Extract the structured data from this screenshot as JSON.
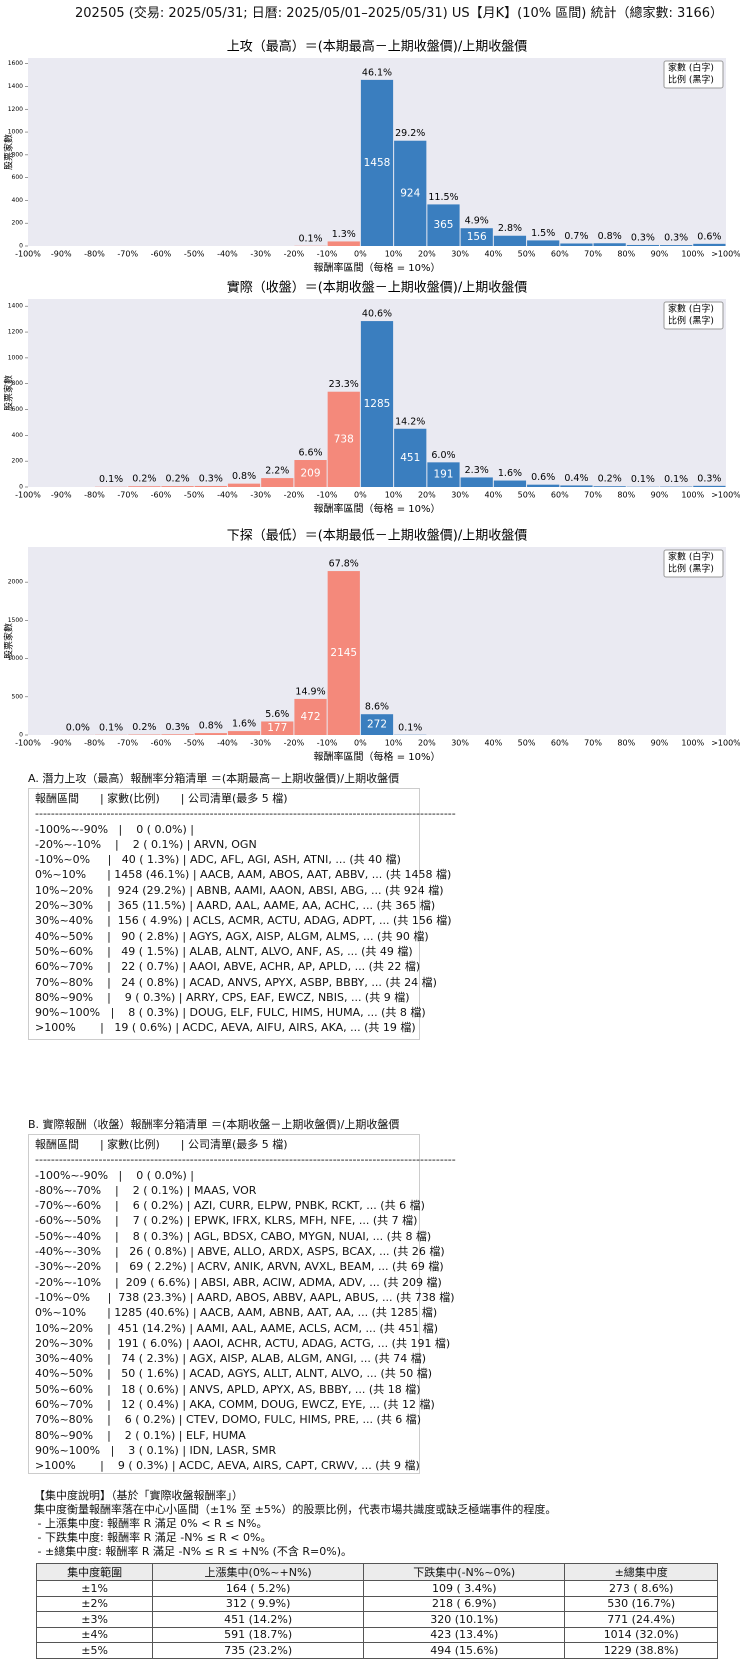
{
  "header": {
    "title": "202505 (交易: 2025/05/31; 日曆: 2025/05/01–2025/05/31) US【月K】(10% 區間) 統計（總家數: 3166）"
  },
  "chart_data": [
    {
      "type": "bar",
      "title": "上攻（最高）＝(本期最高－上期收盤價)/上期收盤價",
      "x_label": "報酬率區間（每格 = 10%）",
      "y_label": "股票家數",
      "x_tick_labels": [
        "-100%",
        "-90%",
        "-80%",
        "-70%",
        "-60%",
        "-50%",
        "-40%",
        "-30%",
        "-20%",
        "-10%",
        "0%",
        "10%",
        "20%",
        "30%",
        "40%",
        "50%",
        "60%",
        "70%",
        "80%",
        "90%",
        "100%",
        ">100%"
      ],
      "values": [
        0,
        0,
        0,
        0,
        0,
        0,
        0,
        0,
        2,
        40,
        1458,
        924,
        365,
        156,
        90,
        49,
        22,
        24,
        9,
        8,
        19
      ],
      "pct_labels": [
        null,
        null,
        null,
        null,
        null,
        null,
        null,
        null,
        "0.1%",
        "1.3%",
        "46.1%",
        "29.2%",
        "11.5%",
        "4.9%",
        "2.8%",
        "1.5%",
        "0.7%",
        "0.8%",
        "0.3%",
        "0.3%",
        "0.6%"
      ],
      "colors": [
        "#f4897b",
        "#f4897b",
        "#f4897b",
        "#f4897b",
        "#f4897b",
        "#f4897b",
        "#f4897b",
        "#f4897b",
        "#f4897b",
        "#f4897b",
        "#3a7ebf",
        "#3a7ebf",
        "#3a7ebf",
        "#3a7ebf",
        "#3a7ebf",
        "#3a7ebf",
        "#3a7ebf",
        "#3a7ebf",
        "#3a7ebf",
        "#3a7ebf",
        "#3a7ebf"
      ],
      "ylim": [
        0,
        1650
      ],
      "yticks": [
        0,
        200,
        400,
        600,
        800,
        1000,
        1200,
        1400,
        1600
      ],
      "legend": [
        "家數 (白字)",
        "比例 (黑字)"
      ]
    },
    {
      "type": "bar",
      "title": "實際（收盤）＝(本期收盤－上期收盤價)/上期收盤價",
      "x_label": "報酬率區間（每格 = 10%）",
      "y_label": "股票家數",
      "x_tick_labels": [
        "-100%",
        "-90%",
        "-80%",
        "-70%",
        "-60%",
        "-50%",
        "-40%",
        "-30%",
        "-20%",
        "-10%",
        "0%",
        "10%",
        "20%",
        "30%",
        "40%",
        "50%",
        "60%",
        "70%",
        "80%",
        "90%",
        "100%",
        ">100%"
      ],
      "values": [
        0,
        0,
        2,
        6,
        7,
        8,
        26,
        69,
        209,
        738,
        1285,
        451,
        191,
        74,
        50,
        18,
        12,
        6,
        2,
        3,
        9
      ],
      "pct_labels": [
        null,
        null,
        "0.1%",
        "0.2%",
        "0.2%",
        "0.3%",
        "0.8%",
        "2.2%",
        "6.6%",
        "23.3%",
        "40.6%",
        "14.2%",
        "6.0%",
        "2.3%",
        "1.6%",
        "0.6%",
        "0.4%",
        "0.2%",
        "0.1%",
        "0.1%",
        "0.3%"
      ],
      "colors": [
        "#f4897b",
        "#f4897b",
        "#f4897b",
        "#f4897b",
        "#f4897b",
        "#f4897b",
        "#f4897b",
        "#f4897b",
        "#f4897b",
        "#f4897b",
        "#3a7ebf",
        "#3a7ebf",
        "#3a7ebf",
        "#3a7ebf",
        "#3a7ebf",
        "#3a7ebf",
        "#3a7ebf",
        "#3a7ebf",
        "#3a7ebf",
        "#3a7ebf",
        "#3a7ebf"
      ],
      "ylim": [
        0,
        1456
      ],
      "yticks": [
        0,
        200,
        400,
        600,
        800,
        1000,
        1200,
        1400
      ],
      "legend": [
        "家數 (白字)",
        "比例 (黑字)"
      ]
    },
    {
      "type": "bar",
      "title": "下探（最低）＝(本期最低－上期收盤價)/上期收盤價",
      "x_label": "報酬率區間（每格 = 10%）",
      "y_label": "股票家數",
      "x_tick_labels": [
        "-100%",
        "-90%",
        "-80%",
        "-70%",
        "-60%",
        "-50%",
        "-40%",
        "-30%",
        "-20%",
        "-10%",
        "0%",
        "10%",
        "20%",
        "30%",
        "40%",
        "50%",
        "60%",
        "70%",
        "80%",
        "90%",
        "100%",
        ">100%"
      ],
      "values": [
        0,
        1,
        3,
        6,
        9,
        25,
        51,
        177,
        472,
        2145,
        272,
        3,
        0,
        0,
        0,
        0,
        0,
        0,
        0,
        0,
        0
      ],
      "pct_labels": [
        null,
        "0.0%",
        "0.1%",
        "0.2%",
        "0.3%",
        "0.8%",
        "1.6%",
        "5.6%",
        "14.9%",
        "67.8%",
        "8.6%",
        "0.1%",
        null,
        null,
        null,
        null,
        null,
        null,
        null,
        null,
        null
      ],
      "colors": [
        "#f4897b",
        "#f4897b",
        "#f4897b",
        "#f4897b",
        "#f4897b",
        "#f4897b",
        "#f4897b",
        "#f4897b",
        "#f4897b",
        "#f4897b",
        "#3a7ebf",
        "#3a7ebf",
        "#3a7ebf",
        "#3a7ebf",
        "#3a7ebf",
        "#3a7ebf",
        "#3a7ebf",
        "#3a7ebf",
        "#3a7ebf",
        "#3a7ebf",
        "#3a7ebf"
      ],
      "ylim": [
        0,
        2460
      ],
      "yticks": [
        0,
        500,
        1000,
        1500,
        2000
      ],
      "legend": [
        "家數 (白字)",
        "比例 (黑字)"
      ]
    }
  ],
  "list_a": {
    "title": "A. 潛力上攻（最高）報酬率分箱清單 ＝(本期最高－上期收盤價)/上期收盤價",
    "header": "報酬區間      | 家數(比例)      | 公司清單(最多 5 檔)",
    "separator": "----------------------------------------------------------------------------------------------------------",
    "rows": [
      "-100%~-90%   |    0 ( 0.0%) |",
      "-20%~-10%    |    2 ( 0.1%) | ARVN, OGN",
      "-10%~0%     |   40 ( 1.3%) | ADC, AFL, AGI, ASH, ATNI, ... (共 40 檔)",
      "0%~10%      | 1458 (46.1%) | AACB, AAM, ABOS, AAT, ABBV, ... (共 1458 檔)",
      "10%~20%    |  924 (29.2%) | ABNB, AAMI, AAON, ABSI, ABG, ... (共 924 檔)",
      "20%~30%    |  365 (11.5%) | AARD, AAL, AAME, AA, ACHC, ... (共 365 檔)",
      "30%~40%    |  156 ( 4.9%) | ACLS, ACMR, ACTU, ADAG, ADPT, ... (共 156 檔)",
      "40%~50%    |   90 ( 2.8%) | AGYS, AGX, AISP, ALGM, ALMS, ... (共 90 檔)",
      "50%~60%    |   49 ( 1.5%) | ALAB, ALNT, ALVO, ANF, AS, ... (共 49 檔)",
      "60%~70%    |   22 ( 0.7%) | AAOI, ABVE, ACHR, AP, APLD, ... (共 22 檔)",
      "70%~80%    |   24 ( 0.8%) | ACAD, ANVS, APYX, ASBP, BBBY, ... (共 24 檔)",
      "80%~90%    |    9 ( 0.3%) | ARRY, CPS, EAF, EWCZ, NBIS, ... (共 9 檔)",
      "90%~100%   |    8 ( 0.3%) | DOUG, ELF, FULC, HIMS, HUMA, ... (共 8 檔)",
      ">100%       |   19 ( 0.6%) | ACDC, AEVA, AIFU, AIRS, AKA, ... (共 19 檔)"
    ]
  },
  "list_b": {
    "title": "B. 實際報酬（收盤）報酬率分箱清單 ＝(本期收盤－上期收盤價)/上期收盤價",
    "header": "報酬區間      | 家數(比例)      | 公司清單(最多 5 檔)",
    "separator": "----------------------------------------------------------------------------------------------------------",
    "rows": [
      "-100%~-90%   |    0 ( 0.0%) |",
      "-80%~-70%    |    2 ( 0.1%) | MAAS, VOR",
      "-70%~-60%    |    6 ( 0.2%) | AZI, CURR, ELPW, PNBK, RCKT, ... (共 6 檔)",
      "-60%~-50%    |    7 ( 0.2%) | EPWK, IFRX, KLRS, MFH, NFE, ... (共 7 檔)",
      "-50%~-40%    |    8 ( 0.3%) | AGL, BDSX, CABO, MYGN, NUAI, ... (共 8 檔)",
      "-40%~-30%    |   26 ( 0.8%) | ABVE, ALLO, ARDX, ASPS, BCAX, ... (共 26 檔)",
      "-30%~-20%    |   69 ( 2.2%) | ACRV, ANIK, ARVN, AVXL, BEAM, ... (共 69 檔)",
      "-20%~-10%    |  209 ( 6.6%) | ABSI, ABR, ACIW, ADMA, ADV, ... (共 209 檔)",
      "-10%~0%     |  738 (23.3%) | AARD, ABOS, ABBV, AAPL, ABUS, ... (共 738 檔)",
      "0%~10%      | 1285 (40.6%) | AACB, AAM, ABNB, AAT, AA, ... (共 1285 檔)",
      "10%~20%    |  451 (14.2%) | AAMI, AAL, AAME, ACLS, ACM, ... (共 451 檔)",
      "20%~30%    |  191 ( 6.0%) | AAOI, ACHR, ACTU, ADAG, ACTG, ... (共 191 檔)",
      "30%~40%    |   74 ( 2.3%) | AGX, AISP, ALAB, ALGM, ANGI, ... (共 74 檔)",
      "40%~50%    |   50 ( 1.6%) | ACAD, AGYS, ALLT, ALNT, ALVO, ... (共 50 檔)",
      "50%~60%    |   18 ( 0.6%) | ANVS, APLD, APYX, AS, BBBY, ... (共 18 檔)",
      "60%~70%    |   12 ( 0.4%) | AKA, COMM, DOUG, EWCZ, EYE, ... (共 12 檔)",
      "70%~80%    |    6 ( 0.2%) | CTEV, DOMO, FULC, HIMS, PRE, ... (共 6 檔)",
      "80%~90%    |    2 ( 0.1%) | ELF, HUMA",
      "90%~100%   |    3 ( 0.1%) | IDN, LASR, SMR",
      ">100%       |    9 ( 0.3%) | ACDC, AEVA, AIRS, CAPT, CRWV, ... (共 9 檔)"
    ]
  },
  "concentration": {
    "lines": [
      "【集中度說明】（基於「實際收盤報酬率」）",
      "集中度衡量報酬率落在中心小區間（±1% 至 ±5%）的股票比例，代表市場共識度或缺乏極端事件的程度。",
      " - 上漲集中度: 報酬率 R 滿足 0% < R ≤ N%。",
      " - 下跌集中度: 報酬率 R 滿足 -N% ≤ R < 0%。",
      " - ±總集中度: 報酬率 R 滿足 -N% ≤ R ≤ +N% (不含 R=0%)。"
    ],
    "table": {
      "header": [
        "集中度範圍",
        "上漲集中(0%~+N%)",
        "下跌集中(-N%~0%)",
        "±總集中度"
      ],
      "rows": [
        [
          "±1%",
          "164 ( 5.2%)",
          "109 ( 3.4%)",
          "273 ( 8.6%)"
        ],
        [
          "±2%",
          "312 ( 9.9%)",
          "218 ( 6.9%)",
          "530 (16.7%)"
        ],
        [
          "±3%",
          "451 (14.2%)",
          "320 (10.1%)",
          "771 (24.4%)"
        ],
        [
          "±4%",
          "591 (18.7%)",
          "423 (13.4%)",
          "1014 (32.0%)"
        ],
        [
          "±5%",
          "735 (23.2%)",
          "494 (15.6%)",
          "1229 (38.8%)"
        ]
      ]
    }
  }
}
